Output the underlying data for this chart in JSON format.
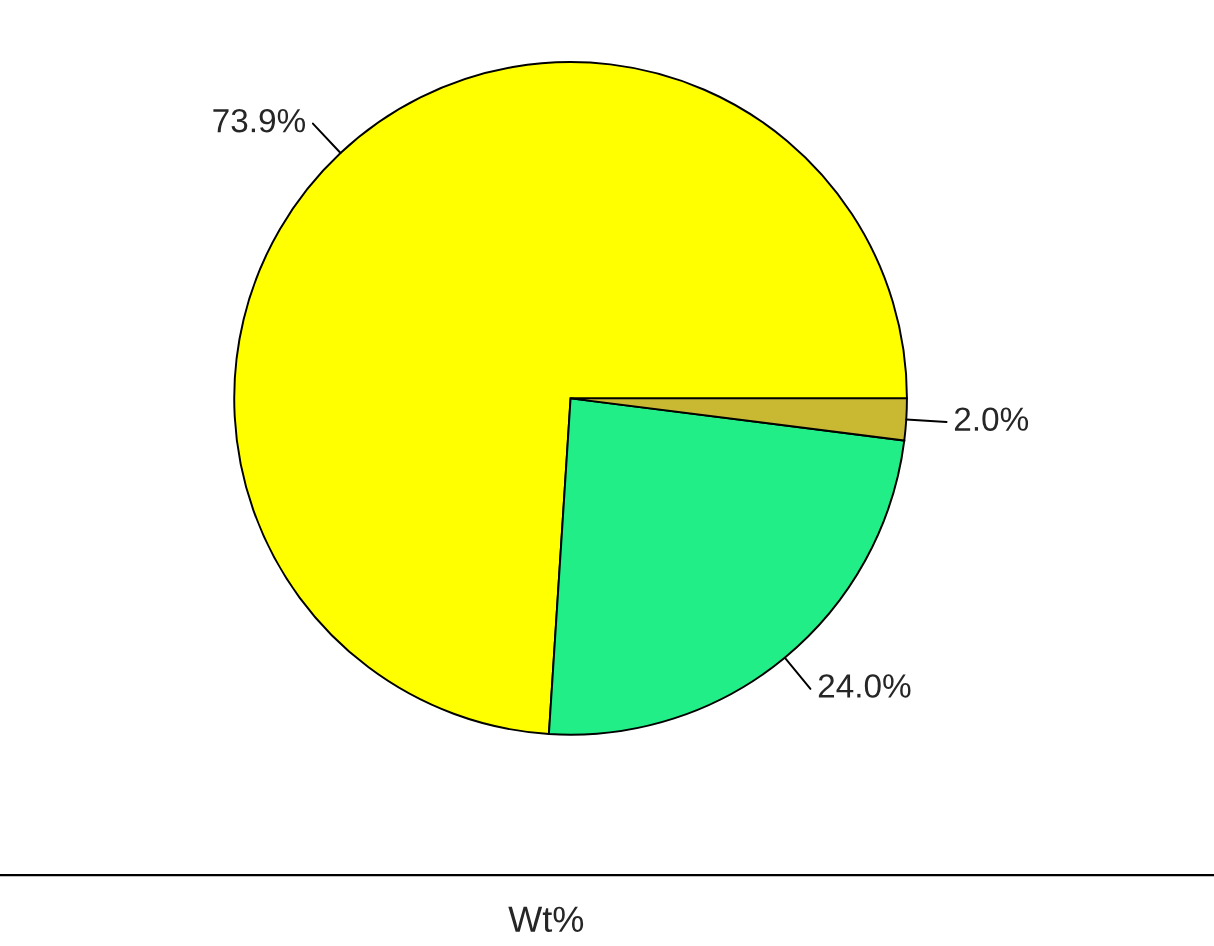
{
  "chart_data": {
    "type": "pie",
    "xlabel": "Wt%",
    "categories": [
      null,
      null,
      null
    ],
    "values": [
      73.9,
      24.0,
      2.0
    ],
    "colors": [
      "#ffff00",
      "#22ee88",
      "#c8b832"
    ],
    "value_labels": [
      "73.9%",
      "24.0%",
      "2.0%"
    ]
  }
}
